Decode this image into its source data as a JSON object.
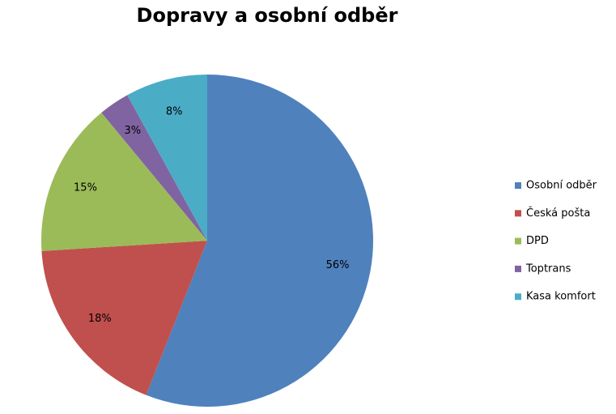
{
  "chart_data": {
    "type": "pie",
    "title": "Dopravy a osobní odběr",
    "categories": [
      "Osobní odběr",
      "Česká pošta",
      "DPD",
      "Toptrans",
      "Kasa komfort"
    ],
    "values": [
      56,
      18,
      15,
      3,
      8
    ],
    "value_labels": [
      "56%",
      "18%",
      "15%",
      "3%",
      "8%"
    ],
    "colors": [
      "#4f81bd",
      "#c0504d",
      "#9bbb59",
      "#8064a2",
      "#4bacc6"
    ],
    "legend": "right"
  }
}
